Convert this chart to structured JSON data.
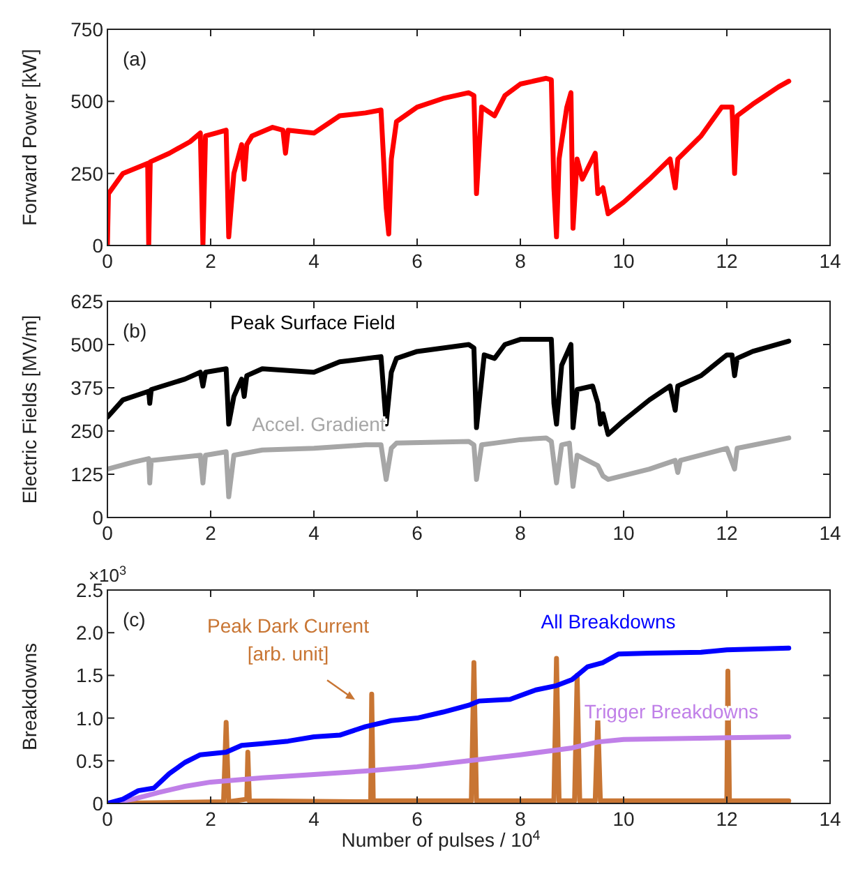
{
  "chart_data": [
    {
      "type": "line",
      "ylabel": "Forward Power [kW]",
      "annotations": [
        "(a)"
      ],
      "xlim": [
        0,
        14
      ],
      "xticks": [
        0,
        2,
        4,
        6,
        8,
        10,
        12,
        14
      ],
      "ylim": [
        0,
        750
      ],
      "yticks": [
        0,
        250,
        500,
        750
      ],
      "grid": false,
      "legend": false,
      "series": [
        {
          "color": "#ff0000",
          "x": [
            0,
            0.02,
            0.3,
            0.78,
            0.8,
            0.83,
            1.2,
            1.6,
            1.8,
            1.85,
            1.9,
            2.1,
            2.3,
            2.35,
            2.45,
            2.6,
            2.65,
            2.7,
            2.8,
            3.2,
            3.4,
            3.45,
            3.5,
            4,
            4.5,
            5,
            5.3,
            5.4,
            5.45,
            5.5,
            5.6,
            6,
            6.5,
            7,
            7.1,
            7.15,
            7.25,
            7.5,
            7.7,
            8,
            8.5,
            8.6,
            8.65,
            8.7,
            8.75,
            8.9,
            8.98,
            9.02,
            9.1,
            9.2,
            9.45,
            9.5,
            9.6,
            9.7,
            10,
            10.5,
            10.9,
            11,
            11.05,
            11.5,
            11.9,
            12.1,
            12.15,
            12.2,
            12.5,
            13,
            13.2
          ],
          "values": [
            0,
            180,
            250,
            285,
            0,
            290,
            320,
            360,
            390,
            0,
            380,
            390,
            400,
            30,
            250,
            350,
            230,
            350,
            380,
            410,
            400,
            320,
            400,
            390,
            450,
            460,
            470,
            130,
            40,
            300,
            430,
            480,
            510,
            530,
            520,
            180,
            480,
            450,
            520,
            560,
            580,
            575,
            200,
            30,
            300,
            480,
            530,
            60,
            300,
            230,
            320,
            180,
            200,
            110,
            150,
            230,
            300,
            200,
            300,
            380,
            480,
            480,
            250,
            450,
            490,
            550,
            570
          ]
        }
      ]
    },
    {
      "type": "line",
      "ylabel": "Electric Fields [MV/m]",
      "annotations": [
        "(b)"
      ],
      "xlim": [
        0,
        14
      ],
      "xticks": [
        0,
        2,
        4,
        6,
        8,
        10,
        12,
        14
      ],
      "ylim": [
        0,
        625
      ],
      "yticks": [
        0,
        125,
        250,
        375,
        500,
        625
      ],
      "grid": false,
      "legend": false,
      "series": [
        {
          "name": "Peak Surface Field",
          "color": "#000000",
          "x": [
            0,
            0.3,
            0.8,
            0.82,
            0.85,
            1.5,
            1.8,
            1.85,
            1.9,
            2.3,
            2.35,
            2.45,
            2.6,
            2.65,
            2.7,
            3,
            4,
            4.5,
            5.3,
            5.4,
            5.5,
            5.6,
            6,
            7,
            7.1,
            7.15,
            7.3,
            7.5,
            7.7,
            8,
            8.6,
            8.65,
            8.7,
            8.8,
            8.98,
            9.02,
            9.1,
            9.4,
            9.5,
            9.55,
            9.6,
            9.7,
            10,
            10.5,
            10.9,
            11,
            11.05,
            11.5,
            12,
            12.1,
            12.15,
            12.2,
            12.5,
            13.2
          ],
          "values": [
            290,
            340,
            365,
            330,
            370,
            400,
            420,
            380,
            420,
            430,
            270,
            350,
            400,
            350,
            410,
            430,
            420,
            450,
            465,
            270,
            420,
            460,
            480,
            500,
            490,
            260,
            470,
            460,
            500,
            515,
            515,
            330,
            270,
            440,
            500,
            260,
            370,
            380,
            330,
            270,
            300,
            240,
            280,
            340,
            380,
            310,
            380,
            410,
            470,
            470,
            410,
            460,
            480,
            510
          ]
        },
        {
          "name": "Accel. Gradient",
          "color": "#a6a6a6",
          "x": [
            0,
            0.5,
            0.8,
            0.82,
            0.85,
            1.8,
            1.85,
            1.9,
            2.3,
            2.35,
            2.45,
            3,
            4,
            5,
            5.3,
            5.4,
            5.5,
            5.6,
            7,
            7.1,
            7.15,
            7.25,
            7.5,
            8,
            8.5,
            8.6,
            8.7,
            8.8,
            8.95,
            9.02,
            9.1,
            9.5,
            9.6,
            9.7,
            10.5,
            11,
            11.05,
            11.1,
            12,
            12.15,
            12.2,
            13.2
          ],
          "values": [
            140,
            160,
            170,
            100,
            165,
            180,
            100,
            180,
            190,
            60,
            180,
            195,
            200,
            210,
            210,
            110,
            200,
            215,
            220,
            210,
            110,
            210,
            215,
            225,
            230,
            220,
            100,
            210,
            215,
            90,
            180,
            150,
            120,
            110,
            140,
            165,
            130,
            165,
            200,
            140,
            200,
            230
          ]
        }
      ]
    },
    {
      "type": "line",
      "ylabel": "Breakdowns",
      "xlabel": "Number of pulses / 10$^{4}$",
      "annotations": [
        "(c)",
        "×10$^{3}$"
      ],
      "xlim": [
        0,
        14
      ],
      "xticks": [
        0,
        2,
        4,
        6,
        8,
        10,
        12,
        14
      ],
      "ylim": [
        0,
        2.5
      ],
      "yticks": [
        0,
        {
          "value": 0.5,
          "label": "0.5"
        },
        {
          "value": 1,
          "label": "1.0"
        },
        {
          "value": 1.5,
          "label": "1.5"
        },
        {
          "value": 2,
          "label": "2.0"
        },
        {
          "value": 2.5,
          "label": "2.5"
        }
      ],
      "grid": false,
      "legend": false,
      "series": [
        {
          "name": "Peak Dark Current [arb. unit]",
          "color": "#c87533",
          "x": [
            0,
            2.25,
            2.3,
            2.35,
            2.7,
            2.72,
            2.75,
            5.1,
            5.12,
            5.15,
            7.05,
            7.1,
            7.15,
            8.65,
            8.7,
            8.75,
            9.05,
            9.1,
            9.15,
            9.45,
            9.5,
            9.55,
            12,
            12.02,
            12.05,
            13.2
          ],
          "values": [
            0,
            0.02,
            0.95,
            0.02,
            0.05,
            0.6,
            0.03,
            0.02,
            1.28,
            0.03,
            0.03,
            1.65,
            0.03,
            0.03,
            1.7,
            0.03,
            0.03,
            1.5,
            0.03,
            0.03,
            1,
            0.03,
            0.03,
            1.55,
            0.03,
            0.03
          ]
        },
        {
          "name": "Trigger Breakdowns",
          "color": "#c080e8",
          "x": [
            0,
            0.5,
            1,
            1.5,
            2,
            3,
            4,
            5,
            6,
            7,
            8,
            9,
            9.5,
            10,
            11,
            12,
            13.2
          ],
          "values": [
            0,
            0.05,
            0.13,
            0.2,
            0.25,
            0.3,
            0.34,
            0.38,
            0.43,
            0.5,
            0.57,
            0.65,
            0.72,
            0.75,
            0.76,
            0.77,
            0.78
          ]
        },
        {
          "name": "All Breakdowns",
          "color": "#0000ff",
          "x": [
            0,
            0.3,
            0.6,
            0.9,
            1.2,
            1.5,
            1.8,
            2.3,
            2.6,
            3,
            3.5,
            4,
            4.5,
            5,
            5.5,
            6,
            6.5,
            7,
            7.2,
            7.8,
            8.3,
            8.7,
            9,
            9.3,
            9.6,
            9.9,
            10.5,
            11.5,
            12,
            13.2
          ],
          "values": [
            0,
            0.05,
            0.15,
            0.18,
            0.35,
            0.48,
            0.57,
            0.6,
            0.68,
            0.7,
            0.73,
            0.78,
            0.8,
            0.9,
            0.97,
            1,
            1.07,
            1.15,
            1.2,
            1.22,
            1.33,
            1.38,
            1.45,
            1.6,
            1.65,
            1.75,
            1.76,
            1.77,
            1.8,
            1.82
          ]
        }
      ]
    }
  ]
}
